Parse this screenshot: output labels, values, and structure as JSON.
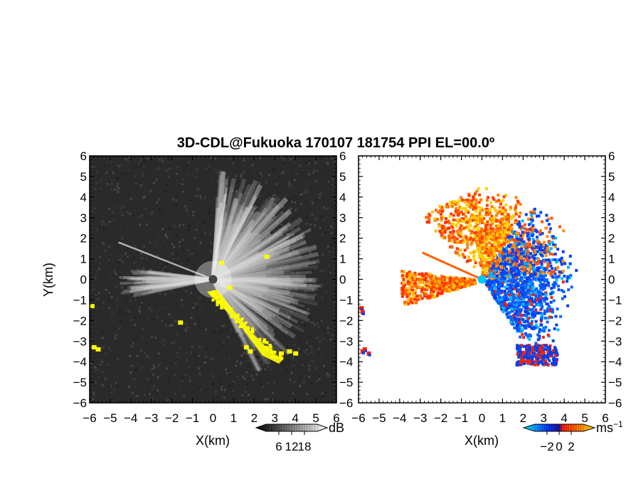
{
  "title": "3D-CDL@Fukuoka 170107 181754 PPI EL=00.0º",
  "chart_data": [
    {
      "type": "heatmap",
      "panel": "left",
      "quantity": "SNR",
      "xlabel": "X(km)",
      "ylabel": "Y(km)",
      "xlim": [
        -6,
        6
      ],
      "ylim": [
        -6,
        6
      ],
      "xticks": [
        -6,
        -5,
        -4,
        -3,
        -2,
        -1,
        0,
        1,
        2,
        3,
        4,
        5,
        6
      ],
      "yticks": [
        -6,
        -5,
        -4,
        -3,
        -2,
        -1,
        0,
        1,
        2,
        3,
        4,
        5,
        6
      ],
      "colorbar": {
        "unit": "dB",
        "ticks": [
          "6",
          "12",
          "18"
        ],
        "colors": [
          "#000000",
          "#ffffff"
        ],
        "highlight_color": "#ffff00"
      },
      "background_color": "#2a2a2a",
      "radar_origin": [
        0,
        0
      ]
    },
    {
      "type": "heatmap",
      "panel": "right",
      "quantity": "radial velocity",
      "xlabel": "X(km)",
      "xlim": [
        -6,
        6
      ],
      "ylim": [
        -6,
        6
      ],
      "xticks": [
        -6,
        -5,
        -4,
        -3,
        -2,
        -1,
        0,
        1,
        2,
        3,
        4,
        5,
        6
      ],
      "yticks": [
        -6,
        -5,
        -4,
        -3,
        -2,
        -1,
        0,
        1,
        2,
        3,
        4,
        5,
        6
      ],
      "colorbar": {
        "unit": "ms",
        "unit_exponent": "−1",
        "ticks": [
          "−2",
          "0",
          "2"
        ],
        "colors": [
          "#00e0ff",
          "#0030ff",
          "#ff2000",
          "#ffd000"
        ]
      },
      "radar_origin": [
        0,
        0
      ],
      "origin_marker_color": "#00c8f0"
    }
  ]
}
